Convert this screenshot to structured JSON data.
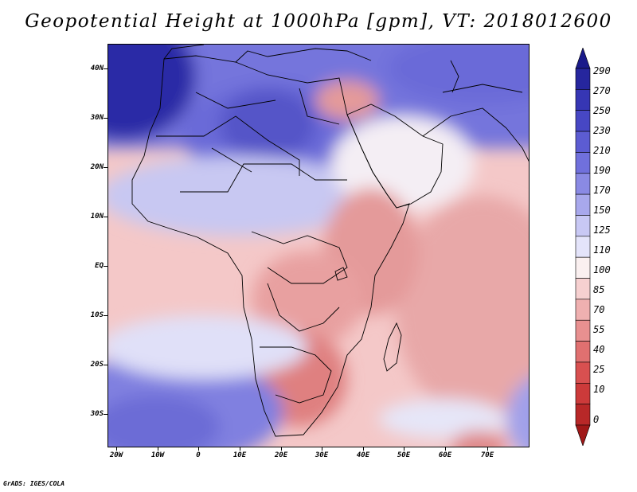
{
  "title": "Geopotential Height at 1000hPa [gpm], VT: 2018012600",
  "credit": "GrADS: IGES/COLA",
  "y_axis_labels": [
    "40N",
    "30N",
    "20N",
    "10N",
    "EQ",
    "10S",
    "20S",
    "30S"
  ],
  "x_axis_labels": [
    "20W",
    "10W",
    "0",
    "10E",
    "20E",
    "30E",
    "40E",
    "50E",
    "60E",
    "70E"
  ],
  "colorbar": {
    "labels": [
      "290",
      "270",
      "250",
      "230",
      "210",
      "190",
      "170",
      "150",
      "125",
      "110",
      "100",
      "85",
      "70",
      "55",
      "40",
      "25",
      "10",
      "0"
    ],
    "colors": [
      "#1a1a8a",
      "#26269e",
      "#3636b4",
      "#4747c4",
      "#5c5cd2",
      "#7070dc",
      "#8a8ae4",
      "#a8a8ec",
      "#c8c8f4",
      "#e4e4fa",
      "#faf0f0",
      "#f6d0d0",
      "#efb0b0",
      "#e89090",
      "#e07070",
      "#d85050",
      "#cc3a3a",
      "#b82828",
      "#a01818"
    ]
  },
  "colors": {
    "ocean_blue_deep": "#3a3ab8",
    "land_red": "#e89090",
    "coast": "#000000"
  }
}
